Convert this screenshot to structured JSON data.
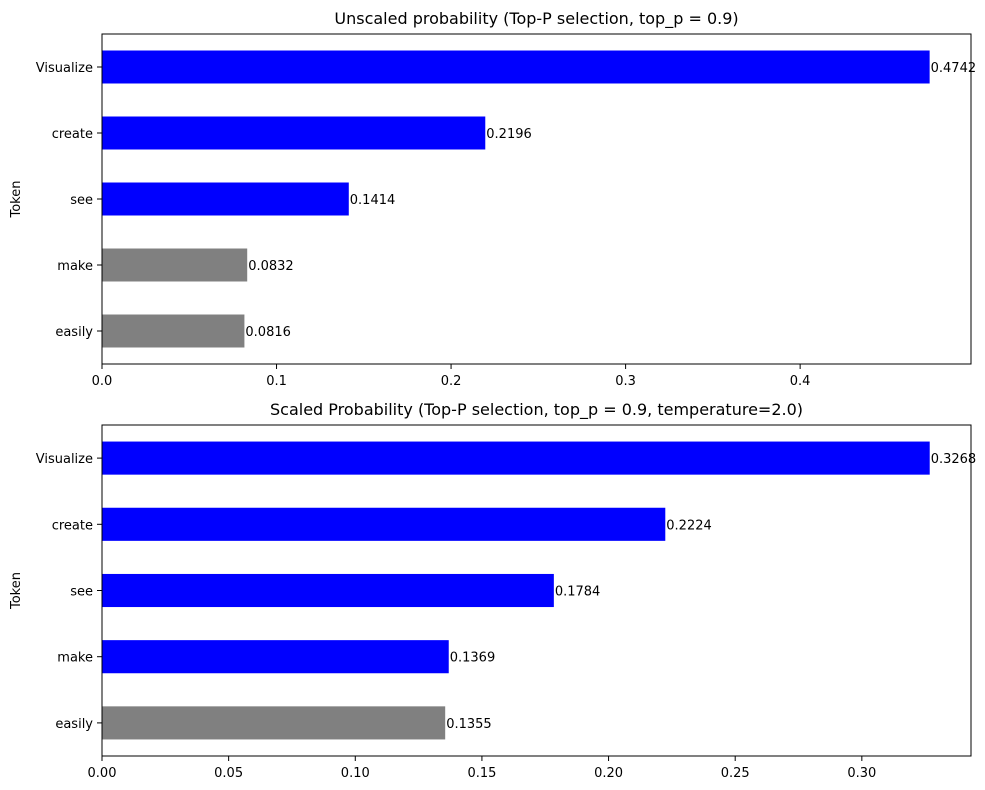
{
  "chart_data": [
    {
      "type": "bar",
      "orientation": "horizontal",
      "title": "Unscaled probability (Top-P selection, top_p = 0.9)",
      "xlabel": "",
      "ylabel": "Token",
      "categories": [
        "Visualize",
        "create",
        "see",
        "make",
        "easily"
      ],
      "values": [
        0.4742,
        0.2196,
        0.1414,
        0.0832,
        0.0816
      ],
      "value_labels": [
        "0.4742",
        "0.2196",
        "0.1414",
        "0.0832",
        "0.0816"
      ],
      "selected": [
        true,
        true,
        true,
        false,
        false
      ],
      "xlim": [
        0,
        0.4979
      ],
      "xticks": [
        0.0,
        0.1,
        0.2,
        0.3,
        0.4
      ],
      "xtick_labels": [
        "0.0",
        "0.1",
        "0.2",
        "0.3",
        "0.4"
      ],
      "grid": false,
      "colors": {
        "selected": "#0000ff",
        "not_selected": "#808080"
      }
    },
    {
      "type": "bar",
      "orientation": "horizontal",
      "title": "Scaled Probability (Top-P selection, top_p = 0.9, temperature=2.0)",
      "xlabel": "",
      "ylabel": "Token",
      "categories": [
        "Visualize",
        "create",
        "see",
        "make",
        "easily"
      ],
      "values": [
        0.3268,
        0.2224,
        0.1784,
        0.1369,
        0.1355
      ],
      "value_labels": [
        "0.3268",
        "0.2224",
        "0.1784",
        "0.1369",
        "0.1355"
      ],
      "selected": [
        true,
        true,
        true,
        true,
        false
      ],
      "xlim": [
        0,
        0.3431
      ],
      "xticks": [
        0.0,
        0.05,
        0.1,
        0.15,
        0.2,
        0.25,
        0.3
      ],
      "xtick_labels": [
        "0.00",
        "0.05",
        "0.10",
        "0.15",
        "0.20",
        "0.25",
        "0.30"
      ],
      "grid": false,
      "colors": {
        "selected": "#0000ff",
        "not_selected": "#808080"
      }
    }
  ]
}
